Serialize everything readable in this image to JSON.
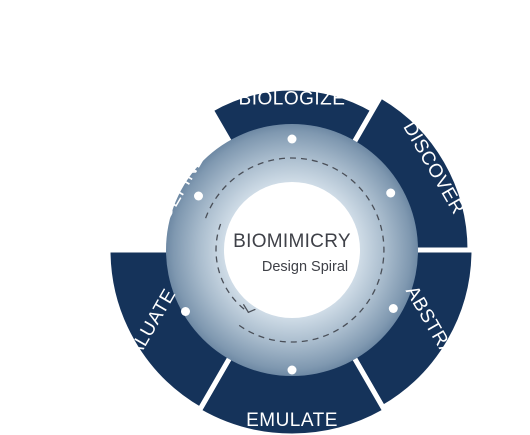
{
  "title": "BIOMIMICRY",
  "subtitle": "Design Spiral",
  "colors": {
    "segment": "#15335a",
    "divider": "#ffffff",
    "ring_inner": "#d4e0ea",
    "ring_outer": "#5d7a98",
    "dot": "#ffffff",
    "dash": "#4a4f58",
    "center_text": "#3f4148"
  },
  "segments": [
    {
      "label": "DEFINE"
    },
    {
      "label": "BIOLOGIZE"
    },
    {
      "label": "DISCOVER"
    },
    {
      "label": "ABSTRACT"
    },
    {
      "label": "EMULATE"
    },
    {
      "label": "EVALUATE"
    }
  ]
}
